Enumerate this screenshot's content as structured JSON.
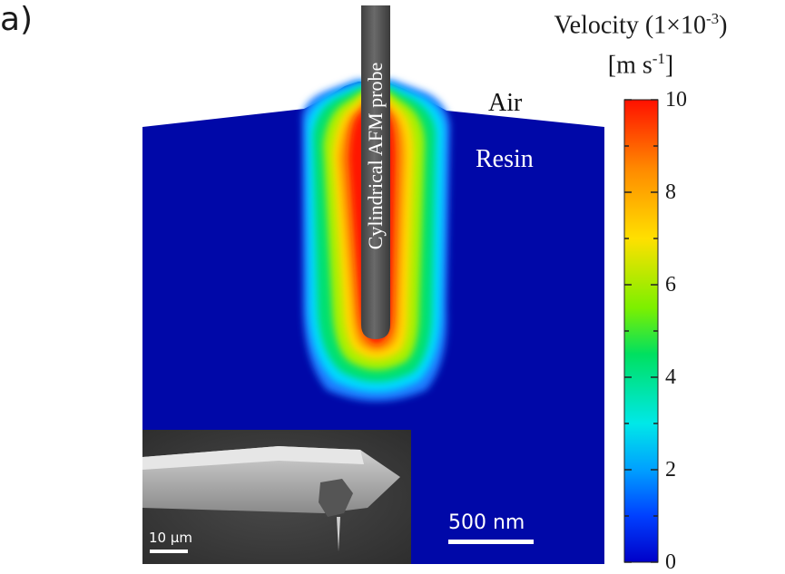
{
  "panel_label": "a)",
  "colorbar": {
    "title": "Velocity (1×10",
    "title_sup": "-3",
    "title_close": ")",
    "unit_open": "[m s",
    "unit_sup": "-1",
    "unit_close": "]",
    "min": 0,
    "max": 10,
    "ticks": [
      {
        "label": "10",
        "value": 10
      },
      {
        "label": "8",
        "value": 8
      },
      {
        "label": "6",
        "value": 6
      },
      {
        "label": "4",
        "value": 4
      },
      {
        "label": "2",
        "value": 2
      },
      {
        "label": "0",
        "value": 0
      }
    ],
    "colors": [
      "#0000c8",
      "#0060ff",
      "#00d8ff",
      "#00e060",
      "#a8ff00",
      "#ffd800",
      "#ff8000",
      "#ff1800"
    ]
  },
  "labels": {
    "probe": "Cylindrical AFM probe",
    "air": "Air",
    "resin": "Resin"
  },
  "scale_bar": {
    "label": "500 nm"
  },
  "inset": {
    "scale_label": "10 µm"
  },
  "colors": {
    "resin_background": "#0008a8",
    "probe": "#555555"
  }
}
